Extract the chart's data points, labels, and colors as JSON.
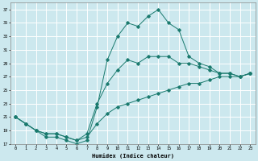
{
  "title": "",
  "xlabel": "Humidex (Indice chaleur)",
  "bg_color": "#cce8ee",
  "grid_color": "#ffffff",
  "line_color": "#1a7a6e",
  "line1_x": [
    0,
    1,
    2,
    3,
    4,
    5,
    6,
    7,
    8,
    9,
    10,
    11,
    12,
    13,
    14,
    15,
    16,
    17,
    18,
    19,
    20,
    21,
    22,
    23
  ],
  "line1_y": [
    21,
    20,
    19,
    18,
    18,
    17.5,
    17,
    17.5,
    22.5,
    29.5,
    33,
    35,
    34.5,
    36,
    37,
    35,
    34,
    30,
    29,
    28.5,
    27.5,
    27.5,
    27,
    27.5
  ],
  "line2_x": [
    0,
    1,
    2,
    3,
    4,
    5,
    6,
    7,
    8,
    9,
    10,
    11,
    12,
    13,
    14,
    15,
    16,
    17,
    18,
    19,
    20,
    21,
    22,
    23
  ],
  "line2_y": [
    21,
    20,
    19,
    18.5,
    18.5,
    18,
    17.5,
    18.5,
    23,
    26,
    28,
    29.5,
    29,
    30,
    30,
    30,
    29,
    29,
    28.5,
    28,
    27.5,
    27.5,
    27,
    27.5
  ],
  "line3_x": [
    0,
    1,
    2,
    3,
    4,
    5,
    6,
    7,
    8,
    9,
    10,
    11,
    12,
    13,
    14,
    15,
    16,
    17,
    18,
    19,
    20,
    21,
    22,
    23
  ],
  "line3_y": [
    21,
    20,
    19,
    18.5,
    18.5,
    18,
    17.5,
    18,
    20,
    21.5,
    22.5,
    23,
    23.5,
    24,
    24.5,
    25,
    25.5,
    26,
    26,
    26.5,
    27,
    27,
    27,
    27.5
  ],
  "ylim": [
    17,
    38
  ],
  "xlim": [
    -0.5,
    23.5
  ],
  "yticks": [
    17,
    19,
    21,
    23,
    25,
    27,
    29,
    31,
    33,
    35,
    37
  ],
  "xticks": [
    0,
    1,
    2,
    3,
    4,
    5,
    6,
    7,
    8,
    9,
    10,
    11,
    12,
    13,
    14,
    15,
    16,
    17,
    18,
    19,
    20,
    21,
    22,
    23
  ]
}
